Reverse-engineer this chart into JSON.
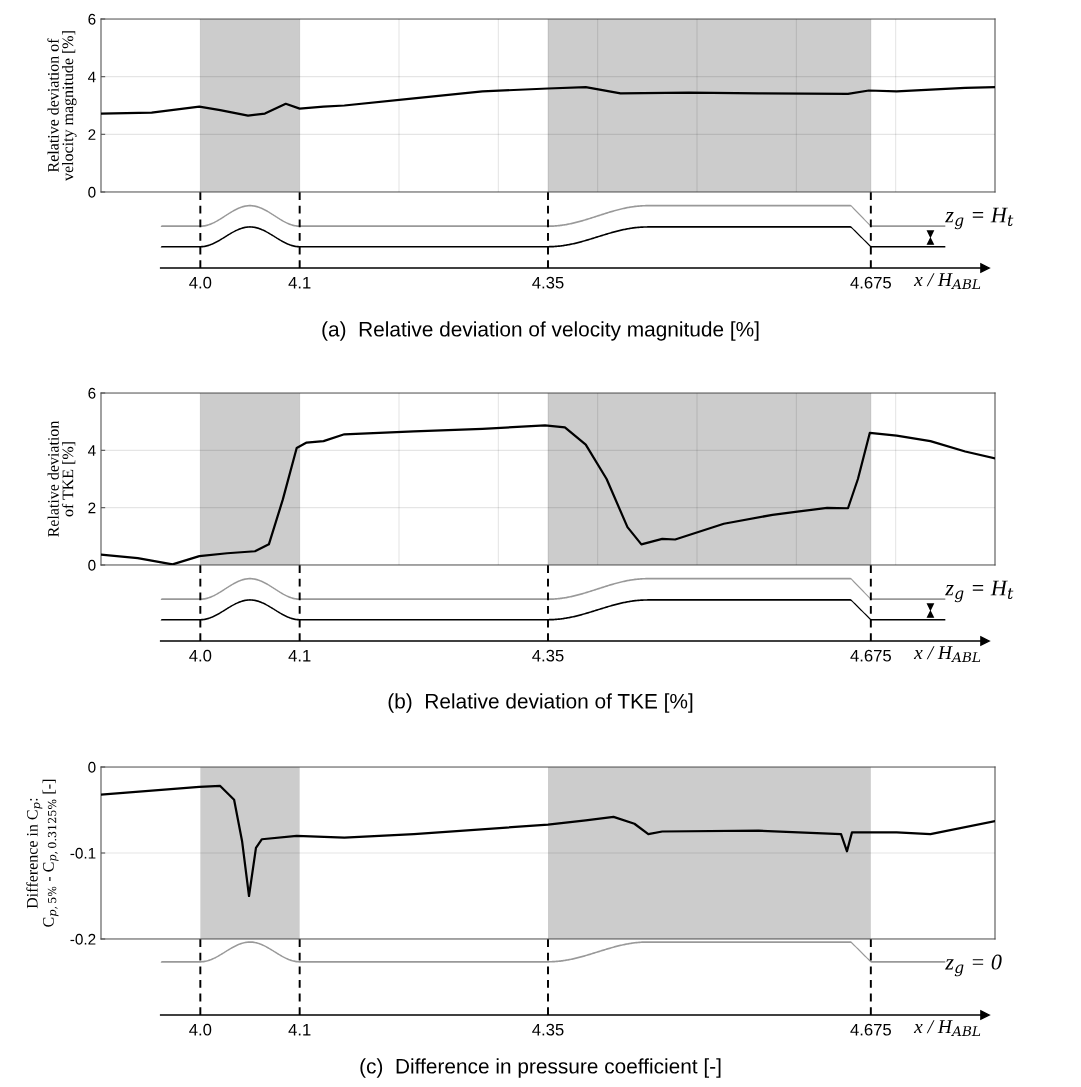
{
  "chart_data": [
    {
      "type": "line",
      "ylabel": "Relative deviation of\nvelocity magnitude [%]",
      "xlabel": "x / H$_{ABL}$",
      "xlim": [
        3.9,
        4.8
      ],
      "ylim": [
        0,
        6
      ],
      "yticks": [
        0,
        2,
        4,
        6
      ],
      "xticks": [
        {
          "value": 4.0,
          "label": "4.0"
        },
        {
          "value": 4.1,
          "label": "4.1"
        },
        {
          "value": 4.2,
          "label": null
        },
        {
          "value": 4.3,
          "label": null
        },
        {
          "value": 4.35,
          "label": "4.35"
        },
        {
          "value": 4.4,
          "label": null
        },
        {
          "value": 4.5,
          "label": null
        },
        {
          "value": 4.6,
          "label": null
        },
        {
          "value": 4.675,
          "label": "4.675"
        },
        {
          "value": 4.7,
          "label": null
        }
      ],
      "grid": true,
      "x": [
        3.9,
        3.951,
        3.999,
        4.02,
        4.048,
        4.065,
        4.086,
        4.1,
        4.124,
        4.145,
        4.215,
        4.284,
        4.35,
        4.388,
        4.423,
        4.492,
        4.562,
        4.652,
        4.673,
        4.701,
        4.77,
        4.8
      ],
      "series": [
        {
          "color": "#000000",
          "values": [
            2.72,
            2.75,
            2.96,
            2.84,
            2.65,
            2.72,
            3.06,
            2.89,
            2.96,
            3.0,
            3.25,
            3.49,
            3.59,
            3.64,
            3.42,
            3.45,
            3.42,
            3.4,
            3.52,
            3.49,
            3.61,
            3.64
          ]
        }
      ],
      "bands": [
        {
          "axis": "x",
          "from": 4.0,
          "to": 4.1,
          "color": "#cccccc"
        },
        {
          "axis": "x",
          "from": 4.35,
          "to": 4.675,
          "color": "#cccccc"
        }
      ],
      "annotations": [
        "(a)  Relative deviation of velocity magnitude [%]",
        "z$_{g}$ = H$_{t}$"
      ]
    },
    {
      "type": "line",
      "ylabel": "Relative deviation\nof TKE [%]",
      "xlabel": "x / H$_{ABL}$",
      "xlim": [
        3.9,
        4.8
      ],
      "ylim": [
        0,
        6
      ],
      "yticks": [
        0,
        2,
        4,
        6
      ],
      "xticks": [
        {
          "value": 4.0,
          "label": "4.0"
        },
        {
          "value": 4.1,
          "label": "4.1"
        },
        {
          "value": 4.2,
          "label": null
        },
        {
          "value": 4.3,
          "label": null
        },
        {
          "value": 4.35,
          "label": "4.35"
        },
        {
          "value": 4.4,
          "label": null
        },
        {
          "value": 4.5,
          "label": null
        },
        {
          "value": 4.6,
          "label": null
        },
        {
          "value": 4.675,
          "label": "4.675"
        },
        {
          "value": 4.7,
          "label": null
        }
      ],
      "grid": true,
      "x": [
        3.9,
        3.937,
        3.972,
        3.999,
        4.027,
        4.055,
        4.069,
        4.083,
        4.097,
        4.107,
        4.124,
        4.145,
        4.215,
        4.284,
        4.347,
        4.367,
        4.388,
        4.409,
        4.43,
        4.444,
        4.465,
        4.478,
        4.527,
        4.576,
        4.603,
        4.631,
        4.652,
        4.662,
        4.674,
        4.701,
        4.735,
        4.77,
        4.8
      ],
      "series": [
        {
          "color": "#000000",
          "values": [
            0.36,
            0.24,
            0.02,
            0.31,
            0.41,
            0.48,
            0.72,
            2.28,
            4.08,
            4.27,
            4.32,
            4.56,
            4.66,
            4.75,
            4.87,
            4.8,
            4.2,
            3.0,
            1.32,
            0.72,
            0.91,
            0.89,
            1.44,
            1.75,
            1.87,
            1.99,
            1.98,
            3.0,
            4.61,
            4.51,
            4.32,
            3.96,
            3.72
          ]
        }
      ],
      "bands": [
        {
          "axis": "x",
          "from": 4.0,
          "to": 4.1,
          "color": "#cccccc"
        },
        {
          "axis": "x",
          "from": 4.35,
          "to": 4.675,
          "color": "#cccccc"
        }
      ],
      "annotations": [
        "(b)  Relative deviation of TKE [%]",
        "z$_{g}$ = H$_{t}$"
      ]
    },
    {
      "type": "line",
      "ylabel": "Difference in C$_{p}$:\nC$_{p,5%}$ - C$_{p,0.3125%}$ [-]",
      "xlabel": "x / H$_{ABL}$",
      "xlim": [
        3.9,
        4.8
      ],
      "ylim": [
        -0.2,
        0
      ],
      "yticks": [
        {
          "value": -0.2,
          "label": "-0.2"
        },
        {
          "value": -0.1,
          "label": "-0.1"
        },
        0
      ],
      "xticks": [
        {
          "value": 4.0,
          "label": "4.0"
        },
        {
          "value": 4.1,
          "label": "4.1"
        },
        {
          "value": 4.35,
          "label": "4.35"
        },
        {
          "value": 4.675,
          "label": "4.675"
        }
      ],
      "grid": "y",
      "x": [
        3.9,
        3.999,
        4.02,
        4.034,
        4.042,
        4.049,
        4.056,
        4.062,
        4.097,
        4.145,
        4.215,
        4.35,
        4.388,
        4.416,
        4.437,
        4.451,
        4.465,
        4.562,
        4.645,
        4.651,
        4.656,
        4.701,
        4.735,
        4.8
      ],
      "series": [
        {
          "color": "#000000",
          "values": [
            -0.032,
            -0.023,
            -0.022,
            -0.038,
            -0.086,
            -0.15,
            -0.094,
            -0.084,
            -0.08,
            -0.082,
            -0.078,
            -0.067,
            -0.062,
            -0.058,
            -0.066,
            -0.078,
            -0.075,
            -0.074,
            -0.078,
            -0.098,
            -0.076,
            -0.076,
            -0.078,
            -0.063
          ]
        }
      ],
      "bands": [
        {
          "axis": "x",
          "from": 4.0,
          "to": 4.1,
          "color": "#cccccc"
        },
        {
          "axis": "x",
          "from": 4.35,
          "to": 4.675,
          "color": "#cccccc"
        }
      ],
      "annotations": [
        "(c)  Difference in pressure coefficient [-]",
        "z$_{g}$ = 0"
      ]
    }
  ]
}
